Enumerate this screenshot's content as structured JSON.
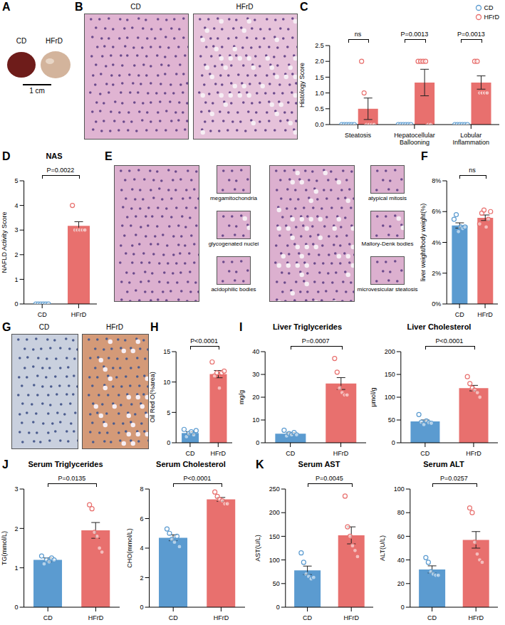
{
  "images": [
    {
      "panel": "A",
      "labels": [
        "CD",
        "HFrD"
      ],
      "scale_bar": "1 cm"
    },
    {
      "panel": "B",
      "labels": [
        "CD",
        "HFrD"
      ]
    },
    {
      "panel": "E",
      "insets_left": [
        "megamitochondria",
        "glycogenated nuclei",
        "acidophilic bodies"
      ],
      "insets_right": [
        "atypical mitosis",
        "Mallory-Denk bodies",
        "microvesicular steatosis"
      ]
    },
    {
      "panel": "G",
      "labels": [
        "CD",
        "HFrD"
      ]
    }
  ],
  "chart_data": [
    {
      "panel": "C",
      "type": "bar",
      "y_label": "Histology Score",
      "categories": [
        "Steatosis",
        "Hepatocellular Ballooning",
        "Lobular Inflammation"
      ],
      "series": [
        {
          "name": "CD",
          "color": "#5b9bd0",
          "values": [
            0,
            0,
            0
          ],
          "errors": [
            0,
            0,
            0
          ],
          "points": [
            [
              0,
              0,
              0,
              0,
              0,
              0
            ],
            [
              0,
              0,
              0,
              0,
              0,
              0
            ],
            [
              0,
              0,
              0,
              0,
              0,
              0
            ]
          ]
        },
        {
          "name": "HFrD",
          "color": "#e8706e",
          "values": [
            0.5,
            1.33,
            1.33
          ],
          "errors": [
            0.34,
            0.42,
            0.21
          ],
          "points": [
            [
              2,
              1,
              0,
              0,
              0,
              0
            ],
            [
              2,
              2,
              2,
              2,
              0,
              0
            ],
            [
              2,
              2,
              1,
              1,
              1,
              1
            ]
          ]
        }
      ],
      "ylim": [
        0,
        2.5
      ],
      "yticks": [
        {
          "value": 0,
          "label": "0.0"
        },
        0.5,
        {
          "value": 1,
          "label": "1.0"
        },
        1.5,
        {
          "value": 2,
          "label": "2.0"
        },
        2.5
      ],
      "legend": "top-right",
      "annotations": [
        "ns",
        "P=0.0013",
        "P=0.0013"
      ]
    },
    {
      "panel": "D",
      "type": "bar",
      "title": "NAS",
      "y_label": "NAFLD Activity Score",
      "categories": [
        "CD",
        "HFrD"
      ],
      "colors": [
        "#5b9bd0",
        "#e8706e"
      ],
      "values": [
        0,
        3.17
      ],
      "errors": [
        0,
        0.17
      ],
      "points": [
        [
          0,
          0,
          0,
          0,
          0,
          0
        ],
        [
          4,
          3,
          3,
          3,
          3,
          3
        ]
      ],
      "ylim": [
        0,
        5
      ],
      "yticks": [
        0,
        1,
        2,
        3,
        4,
        5
      ],
      "annotations": [
        "P=0.0022"
      ]
    },
    {
      "panel": "F",
      "type": "bar",
      "y_label": "liver weight/body weight(%)",
      "categories": [
        "CD",
        "HFrD"
      ],
      "colors": [
        "#5b9bd0",
        "#e8706e"
      ],
      "values": [
        5.1,
        5.6
      ],
      "errors": [
        0.17,
        0.18
      ],
      "points": [
        [
          5.5,
          5.8,
          4.7,
          5.0,
          4.9,
          5.0
        ],
        [
          5.2,
          5.9,
          6.1,
          5.0,
          5.5,
          6.0
        ]
      ],
      "ylim": [
        0,
        8
      ],
      "yticks": [
        {
          "value": 0,
          "label": "0%"
        },
        {
          "value": 2,
          "label": "2%"
        },
        {
          "value": 4,
          "label": "4%"
        },
        {
          "value": 6,
          "label": "6%"
        },
        {
          "value": 8,
          "label": "8%"
        }
      ],
      "annotations": [
        "ns"
      ]
    },
    {
      "panel": "H",
      "type": "bar",
      "y_label": "Oil Red O(%area)",
      "categories": [
        "CD",
        "HFrD"
      ],
      "colors": [
        "#5b9bd0",
        "#e8706e"
      ],
      "values": [
        1.6,
        11.3
      ],
      "errors": [
        0.2,
        0.6
      ],
      "points": [
        [
          2.2,
          1.0,
          1.5,
          1.8,
          1.3,
          2.0
        ],
        [
          13.3,
          11.0,
          11.5,
          9.0,
          11.5,
          11.8
        ]
      ],
      "ylim": [
        0,
        15
      ],
      "yticks": [
        0,
        5,
        10,
        15
      ],
      "annotations": [
        "P<0.0001"
      ]
    },
    {
      "panel": "I",
      "type": "bar",
      "title": "Liver Triglycerides",
      "y_label": "mg/g",
      "categories": [
        "CD",
        "HFrD"
      ],
      "colors": [
        "#5b9bd0",
        "#e8706e"
      ],
      "values": [
        4,
        26
      ],
      "errors": [
        0.4,
        2.6
      ],
      "points": [
        [
          5.5,
          3,
          4,
          3.5,
          4.5,
          3.5
        ],
        [
          37,
          31,
          24,
          22,
          21,
          21
        ]
      ],
      "ylim": [
        0,
        40
      ],
      "yticks": [
        0,
        10,
        20,
        30,
        40
      ],
      "annotations": [
        "P=0.0007"
      ]
    },
    {
      "type": "bar",
      "title": "Liver Cholesterol",
      "y_label": "μmol/g",
      "categories": [
        "CD",
        "HFrD"
      ],
      "colors": [
        "#5b9bd0",
        "#e8706e"
      ],
      "values": [
        47,
        120
      ],
      "errors": [
        3,
        6
      ],
      "points": [
        [
          62,
          45,
          40,
          48,
          44,
          43
        ],
        [
          145,
          130,
          120,
          115,
          110,
          100
        ]
      ],
      "ylim": [
        0,
        200
      ],
      "yticks": [
        0,
        50,
        100,
        150,
        200
      ],
      "annotations": [
        "P<0.0001"
      ]
    },
    {
      "panel": "J",
      "type": "bar",
      "title": "Serum Triglycerides",
      "y_label": "TG(mmol/L)",
      "categories": [
        "CD",
        "HFrD"
      ],
      "colors": [
        "#5b9bd0",
        "#e8706e"
      ],
      "values": [
        1.2,
        1.95
      ],
      "errors": [
        0.05,
        0.2
      ],
      "points": [
        [
          1.3,
          1.1,
          1.2,
          1.15,
          1.25,
          1.2
        ],
        [
          2.6,
          2.5,
          1.9,
          1.8,
          1.5,
          1.4
        ]
      ],
      "ylim": [
        0,
        3
      ],
      "yticks": [
        0,
        1,
        2,
        3
      ],
      "annotations": [
        "P=0.0135"
      ]
    },
    {
      "type": "bar",
      "title": "Serum Cholesterol",
      "y_label": "CHO(mmol/L)",
      "categories": [
        "CD",
        "HFrD"
      ],
      "colors": [
        "#5b9bd0",
        "#e8706e"
      ],
      "values": [
        4.7,
        7.3
      ],
      "errors": [
        0.2,
        0.13
      ],
      "points": [
        [
          5.3,
          5.0,
          4.6,
          4.4,
          4.8,
          4.1
        ],
        [
          7.8,
          7.5,
          7.3,
          7.2,
          7.0,
          7.0
        ]
      ],
      "ylim": [
        0,
        8
      ],
      "yticks": [
        0,
        2,
        4,
        6,
        8
      ],
      "annotations": [
        "P<0.0001"
      ]
    },
    {
      "panel": "K",
      "type": "bar",
      "title": "Serum AST",
      "y_label": "AST(U/L)",
      "categories": [
        "CD",
        "HFrD"
      ],
      "colors": [
        "#5b9bd0",
        "#e8706e"
      ],
      "values": [
        78,
        152
      ],
      "errors": [
        9,
        18
      ],
      "points": [
        [
          115,
          95,
          70,
          65,
          60,
          63
        ],
        [
          235,
          170,
          150,
          130,
          120,
          107
        ]
      ],
      "ylim": [
        0,
        250
      ],
      "yticks": [
        0,
        50,
        100,
        150,
        200,
        250
      ],
      "annotations": [
        "P=0.0045"
      ]
    },
    {
      "type": "bar",
      "title": "Serum ALT",
      "y_label": "ALT(U/L)",
      "categories": [
        "CD",
        "HFrD"
      ],
      "colors": [
        "#5b9bd0",
        "#e8706e"
      ],
      "values": [
        32,
        57
      ],
      "errors": [
        3,
        7
      ],
      "points": [
        [
          42,
          38,
          30,
          28,
          27,
          27
        ],
        [
          84,
          80,
          55,
          45,
          40,
          38
        ]
      ],
      "ylim": [
        0,
        100
      ],
      "yticks": [
        0,
        20,
        40,
        60,
        80,
        100
      ],
      "annotations": [
        "P=0.0257"
      ]
    }
  ]
}
